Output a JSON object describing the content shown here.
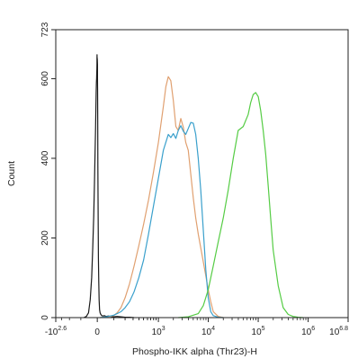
{
  "chart_data": {
    "type": "line",
    "title": "",
    "xlabel": "Phospho-IKK alpha (Thr23)-H",
    "ylabel": "Count",
    "xscale": "biexponential",
    "x_range_exponent": [
      -2.6,
      6.8
    ],
    "ylim": [
      0,
      723
    ],
    "grid": false,
    "legend": "none",
    "x_ticks": [
      {
        "base": "-10",
        "exp": "2.6",
        "value": -398
      },
      {
        "base": "0",
        "exp": "",
        "value": 0
      },
      {
        "base": "10",
        "exp": "3",
        "value": 1000
      },
      {
        "base": "10",
        "exp": "4",
        "value": 10000
      },
      {
        "base": "10",
        "exp": "5",
        "value": 100000
      },
      {
        "base": "10",
        "exp": "6",
        "value": 1000000
      },
      {
        "base": "10",
        "exp": "6.8",
        "value": 6309573
      }
    ],
    "y_ticks": [
      {
        "label": "0",
        "value": 0
      },
      {
        "label": "200",
        "value": 200
      },
      {
        "label": "400",
        "value": 400
      },
      {
        "label": "600",
        "value": 600
      },
      {
        "label": "723",
        "value": 723
      }
    ],
    "series": [
      {
        "color": "#1a1a1a",
        "x": [
          -1.9,
          -1.8,
          -1.7,
          -1.6,
          -1.5,
          -1.4,
          -1.3,
          -1.2,
          -1.1,
          -1.0,
          -0.9,
          -0.8,
          -0.7,
          -0.6,
          -0.5,
          -0.4,
          -0.3,
          -0.2,
          -0.15,
          -0.1,
          -0.05,
          0.0,
          0.05,
          0.1,
          0.15,
          0.2,
          0.3,
          0.4,
          0.5,
          0.6,
          0.7,
          0.8,
          0.9,
          1.0,
          1.1,
          1.2,
          1.3,
          1.4,
          1.5,
          1.6,
          1.7,
          1.8,
          1.9,
          2.0,
          2.1,
          2.2,
          2.3,
          2.4,
          2.5
        ],
        "values": [
          0,
          3,
          12,
          45,
          100,
          175,
          255,
          335,
          405,
          470,
          525,
          565,
          592,
          600,
          610,
          625,
          638,
          650,
          660,
          660,
          655,
          648,
          635,
          618,
          600,
          575,
          520,
          455,
          380,
          300,
          225,
          150,
          90,
          45,
          20,
          12,
          8,
          5,
          4,
          5,
          3,
          4,
          3,
          2,
          3,
          2,
          1,
          1,
          0
        ]
      },
      {
        "color": "#e0a070",
        "x": [
          1.2,
          1.5,
          1.8,
          2.0,
          2.1,
          2.2,
          2.3,
          2.4,
          2.5,
          2.6,
          2.7,
          2.8,
          2.9,
          3.0,
          3.1,
          3.15,
          3.2,
          3.25,
          3.3,
          3.35,
          3.4,
          3.45,
          3.5,
          3.55,
          3.6,
          3.65,
          3.7,
          3.75,
          3.8,
          3.85,
          3.9,
          3.95,
          4.0,
          4.05,
          4.1,
          4.2,
          4.3
        ],
        "values": [
          0,
          1,
          2,
          5,
          12,
          25,
          50,
          85,
          130,
          180,
          235,
          295,
          365,
          440,
          530,
          580,
          605,
          595,
          545,
          480,
          470,
          500,
          478,
          440,
          420,
          360,
          300,
          250,
          210,
          175,
          140,
          105,
          70,
          40,
          15,
          3,
          0
        ]
      },
      {
        "color": "#3aa0cc",
        "x": [
          1.2,
          1.5,
          1.8,
          2.0,
          2.1,
          2.2,
          2.3,
          2.4,
          2.5,
          2.6,
          2.7,
          2.8,
          2.9,
          3.0,
          3.1,
          3.2,
          3.25,
          3.3,
          3.35,
          3.4,
          3.45,
          3.5,
          3.55,
          3.6,
          3.65,
          3.7,
          3.75,
          3.8,
          3.85,
          3.9,
          3.95,
          4.0,
          4.05,
          4.1,
          4.2,
          4.3
        ],
        "values": [
          0,
          1,
          3,
          6,
          10,
          15,
          25,
          40,
          65,
          100,
          145,
          210,
          280,
          350,
          420,
          460,
          452,
          462,
          450,
          470,
          482,
          468,
          460,
          475,
          490,
          488,
          460,
          400,
          320,
          220,
          120,
          50,
          15,
          5,
          1,
          0
        ]
      },
      {
        "color": "#55cc44",
        "x": [
          3.4,
          3.6,
          3.8,
          3.9,
          4.0,
          4.1,
          4.2,
          4.3,
          4.4,
          4.5,
          4.6,
          4.7,
          4.8,
          4.85,
          4.9,
          4.95,
          5.0,
          5.05,
          5.1,
          5.15,
          5.2,
          5.25,
          5.3,
          5.4,
          5.5,
          5.6,
          5.7,
          5.8,
          5.9
        ],
        "values": [
          0,
          2,
          10,
          30,
          70,
          130,
          190,
          250,
          320,
          400,
          470,
          480,
          510,
          540,
          560,
          565,
          555,
          520,
          470,
          410,
          330,
          250,
          170,
          80,
          25,
          8,
          3,
          1,
          0
        ]
      }
    ]
  }
}
